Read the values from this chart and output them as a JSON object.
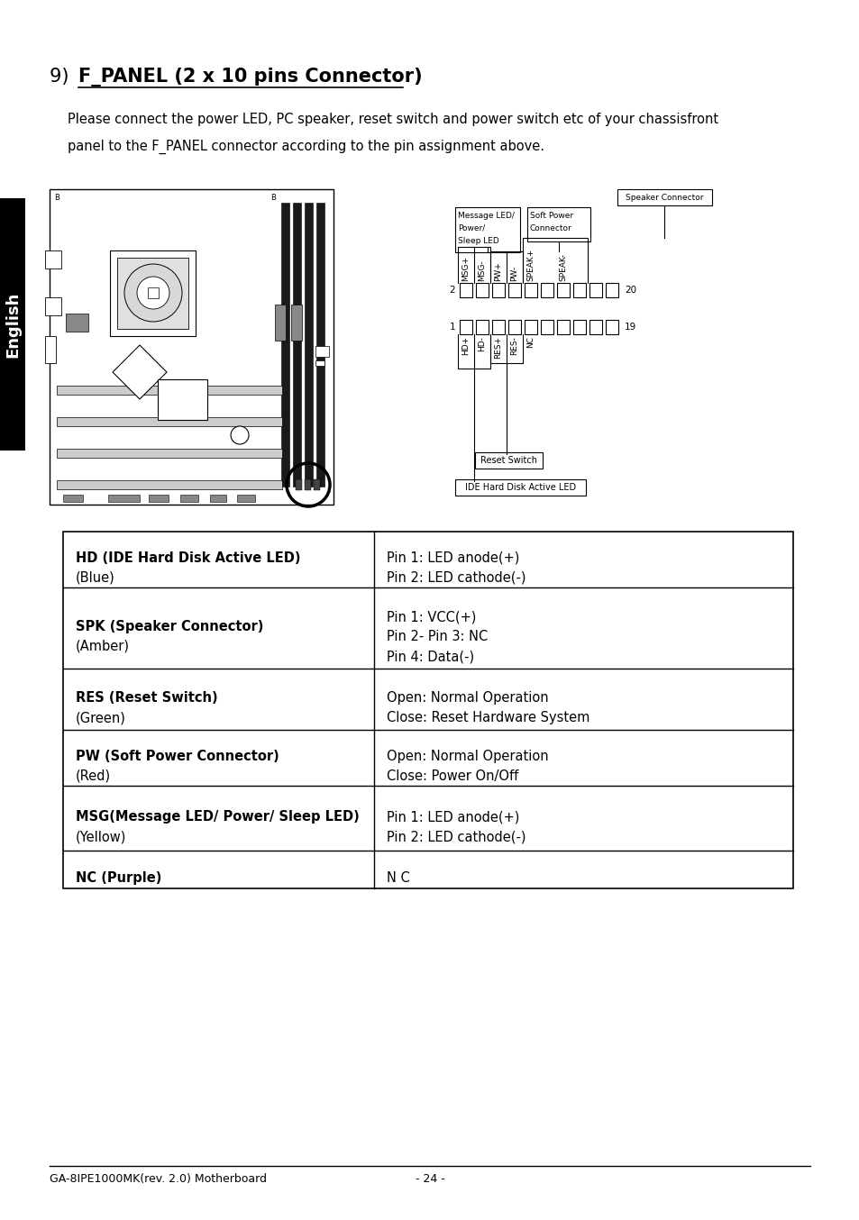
{
  "title_number": "9)",
  "title_bold": "F_PANEL (2 x 10 pins Connector)",
  "description_line1": "Please connect the power LED, PC speaker, reset switch and power switch etc of your chassisfront",
  "description_line2": "panel to the F_PANEL connector according to the pin assignment above.",
  "sidebar_text": "English",
  "table_rows": [
    {
      "col1_lines": [
        "HD (IDE Hard Disk Active LED)",
        "(Blue)"
      ],
      "col2_lines": [
        "Pin 1: LED anode(+)",
        "Pin 2: LED cathode(-)"
      ]
    },
    {
      "col1_lines": [
        "SPK (Speaker Connector)",
        "(Amber)"
      ],
      "col2_lines": [
        "Pin 1: VCC(+)",
        "Pin 2- Pin 3: NC",
        "Pin 4: Data(-)"
      ]
    },
    {
      "col1_lines": [
        "RES (Reset Switch)",
        "(Green)"
      ],
      "col2_lines": [
        "Open: Normal Operation",
        "Close: Reset Hardware System"
      ]
    },
    {
      "col1_lines": [
        "PW (Soft Power Connector)",
        "(Red)"
      ],
      "col2_lines": [
        "Open: Normal Operation",
        "Close: Power On/Off"
      ]
    },
    {
      "col1_lines": [
        "MSG(Message LED/ Power/ Sleep LED)",
        "(Yellow)"
      ],
      "col2_lines": [
        "Pin 1: LED anode(+)",
        "Pin 2: LED cathode(-)"
      ]
    },
    {
      "col1_lines": [
        "NC (Purple)"
      ],
      "col2_lines": [
        "N C"
      ]
    }
  ],
  "footer_left": "GA-8IPE1000MK(rev. 2.0) Motherboard",
  "footer_right": "- 24 -",
  "bg_color": "#ffffff",
  "text_color": "#000000",
  "sidebar_bg": "#000000",
  "sidebar_text_color": "#ffffff"
}
